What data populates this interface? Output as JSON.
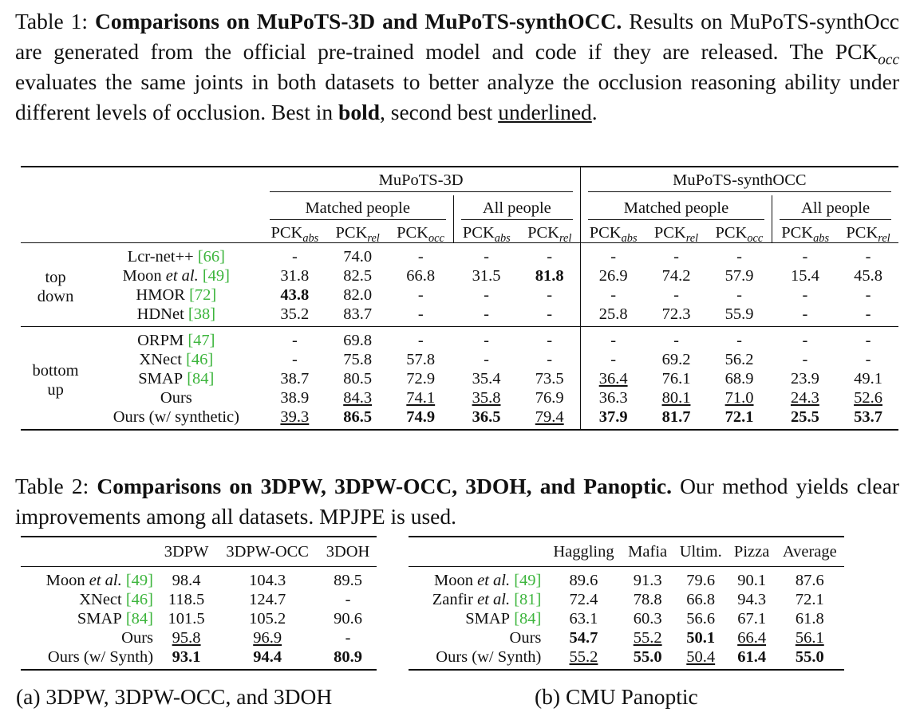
{
  "table1": {
    "caption": [
      {
        "text": "Table 1: "
      },
      {
        "text": "Comparisons on MuPoTS-3D and MuPoTS-synthOCC.",
        "style": "bold"
      },
      {
        "text": " Results on MuPoTS-synthOcc are generated from the official pre-trained model and code if they are released. The PCK"
      },
      {
        "text": "occ",
        "style": "sub"
      },
      {
        "text": " evaluates the same joints in both datasets to better analyze the occlusion reasoning ability under different levels of occlusion. Best in "
      },
      {
        "text": "bold",
        "style": "bold"
      },
      {
        "text": ", second best "
      },
      {
        "text": "underlined",
        "style": "underline"
      },
      {
        "text": "."
      }
    ],
    "group_headers": [
      "MuPoTS-3D",
      "MuPoTS-synthOCC"
    ],
    "sub_headers": [
      "Matched people",
      "All people",
      "Matched people",
      "All people"
    ],
    "columns": [
      {
        "base": "PCK",
        "sub": "abs"
      },
      {
        "base": "PCK",
        "sub": "rel"
      },
      {
        "base": "PCK",
        "sub": "occ"
      },
      {
        "base": "PCK",
        "sub": "abs"
      },
      {
        "base": "PCK",
        "sub": "rel"
      },
      {
        "base": "PCK",
        "sub": "abs"
      },
      {
        "base": "PCK",
        "sub": "rel"
      },
      {
        "base": "PCK",
        "sub": "occ"
      },
      {
        "base": "PCK",
        "sub": "abs"
      },
      {
        "base": "PCK",
        "sub": "rel"
      }
    ],
    "sections": [
      {
        "label": [
          "top",
          "down"
        ],
        "rows": [
          {
            "method": {
              "name": "Lcr-net++",
              "ref": "[66]"
            },
            "cells": [
              "-",
              "74.0",
              "-",
              "-",
              "-",
              "-",
              "-",
              "-",
              "-",
              "-"
            ],
            "bold": [],
            "underline": []
          },
          {
            "method": {
              "name": "Moon",
              "italic": "et al.",
              "ref": "[49]"
            },
            "cells": [
              "31.8",
              "82.5",
              "66.8",
              "31.5",
              "81.8",
              "26.9",
              "74.2",
              "57.9",
              "15.4",
              "45.8"
            ],
            "bold": [
              4
            ],
            "underline": []
          },
          {
            "method": {
              "name": "HMOR",
              "ref": "[72]"
            },
            "cells": [
              "43.8",
              "82.0",
              "-",
              "-",
              "-",
              "-",
              "-",
              "-",
              "-",
              "-"
            ],
            "bold": [
              0
            ],
            "underline": []
          },
          {
            "method": {
              "name": "HDNet",
              "ref": "[38]"
            },
            "cells": [
              "35.2",
              "83.7",
              "-",
              "-",
              "-",
              "25.8",
              "72.3",
              "55.9",
              "-",
              "-"
            ],
            "bold": [],
            "underline": []
          }
        ]
      },
      {
        "label": [
          "bottom",
          "up"
        ],
        "rows": [
          {
            "method": {
              "name": "ORPM",
              "ref": "[47]"
            },
            "cells": [
              "-",
              "69.8",
              "-",
              "-",
              "-",
              "-",
              "-",
              "-",
              "-",
              "-"
            ],
            "bold": [],
            "underline": []
          },
          {
            "method": {
              "name": "XNect",
              "ref": "[46]"
            },
            "cells": [
              "-",
              "75.8",
              "57.8",
              "-",
              "-",
              "-",
              "69.2",
              "56.2",
              "-",
              "-"
            ],
            "bold": [],
            "underline": []
          },
          {
            "method": {
              "name": "SMAP",
              "ref": "[84]"
            },
            "cells": [
              "38.7",
              "80.5",
              "72.9",
              "35.4",
              "73.5",
              "36.4",
              "76.1",
              "68.9",
              "23.9",
              "49.1"
            ],
            "bold": [],
            "underline": [
              5
            ]
          },
          {
            "method": {
              "name": "Ours"
            },
            "cells": [
              "38.9",
              "84.3",
              "74.1",
              "35.8",
              "76.9",
              "36.3",
              "80.1",
              "71.0",
              "24.3",
              "52.6"
            ],
            "bold": [],
            "underline": [
              1,
              2,
              3,
              6,
              7,
              8,
              9
            ]
          },
          {
            "method": {
              "name": "Ours (w/ synthetic)"
            },
            "cells": [
              "39.3",
              "86.5",
              "74.9",
              "36.5",
              "79.4",
              "37.9",
              "81.7",
              "72.1",
              "25.5",
              "53.7"
            ],
            "bold": [
              1,
              2,
              3,
              5,
              6,
              7,
              8,
              9
            ],
            "underline": [
              0,
              4
            ]
          }
        ]
      }
    ]
  },
  "table2": {
    "caption": [
      {
        "text": "Table 2: "
      },
      {
        "text": "Comparisons on 3DPW, 3DPW-OCC, 3DOH, and Panoptic.",
        "style": "bold"
      },
      {
        "text": " Our method yields clear improvements among all datasets. MPJPE is used."
      }
    ],
    "subtables": [
      {
        "label": "(a) 3DPW, 3DPW-OCC, and 3DOH",
        "columns": [
          "3DPW",
          "3DPW-OCC",
          "3DOH"
        ],
        "rows": [
          {
            "method": {
              "name": "Moon",
              "italic": "et al.",
              "ref": "[49]"
            },
            "cells": [
              "98.4",
              "104.3",
              "89.5"
            ],
            "bold": [],
            "underline": []
          },
          {
            "method": {
              "name": "XNect",
              "ref": "[46]"
            },
            "cells": [
              "118.5",
              "124.7",
              "-"
            ],
            "bold": [],
            "underline": []
          },
          {
            "method": {
              "name": "SMAP",
              "ref": "[84]"
            },
            "cells": [
              "101.5",
              "105.2",
              "90.6"
            ],
            "bold": [],
            "underline": []
          },
          {
            "method": {
              "name": "Ours"
            },
            "cells": [
              "95.8",
              "96.9",
              "-"
            ],
            "bold": [],
            "underline": [
              0,
              1
            ]
          },
          {
            "method": {
              "name": "Ours (w/ Synth)"
            },
            "cells": [
              "93.1",
              "94.4",
              "80.9"
            ],
            "bold": [
              0,
              1,
              2
            ],
            "underline": []
          }
        ]
      },
      {
        "label": "(b) CMU Panoptic",
        "columns": [
          "Haggling",
          "Mafia",
          "Ultim.",
          "Pizza",
          "Average"
        ],
        "rows": [
          {
            "method": {
              "name": "Moon",
              "italic": "et al.",
              "ref": "[49]"
            },
            "cells": [
              "89.6",
              "91.3",
              "79.6",
              "90.1",
              "87.6"
            ],
            "bold": [],
            "underline": []
          },
          {
            "method": {
              "name": "Zanfir",
              "italic": "et al.",
              "ref": "[81]"
            },
            "cells": [
              "72.4",
              "78.8",
              "66.8",
              "94.3",
              "72.1"
            ],
            "bold": [],
            "underline": []
          },
          {
            "method": {
              "name": "SMAP",
              "ref": "[84]"
            },
            "cells": [
              "63.1",
              "60.3",
              "56.6",
              "67.1",
              "61.8"
            ],
            "bold": [],
            "underline": []
          },
          {
            "method": {
              "name": "Ours"
            },
            "cells": [
              "54.7",
              "55.2",
              "50.1",
              "66.4",
              "56.1"
            ],
            "bold": [
              0,
              2
            ],
            "underline": [
              1,
              3,
              4
            ]
          },
          {
            "method": {
              "name": "Ours (w/ Synth)"
            },
            "cells": [
              "55.2",
              "55.0",
              "50.4",
              "61.4",
              "55.0"
            ],
            "bold": [
              1,
              3,
              4
            ],
            "underline": [
              0,
              2
            ]
          }
        ]
      }
    ]
  }
}
